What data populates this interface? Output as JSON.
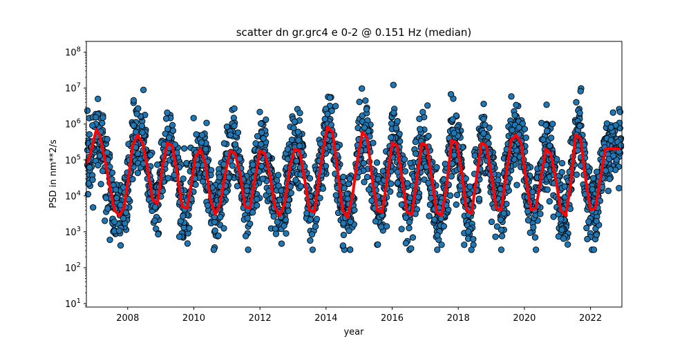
{
  "chart_data": {
    "type": "scatter",
    "title": "scatter dn gr.grc4 e 0-2 @ 0.151 Hz (median)",
    "xlabel": "year",
    "ylabel": "PSD in nm**2/s",
    "xlim": [
      2006.75,
      2022.95
    ],
    "ylim": [
      8,
      200000000
    ],
    "yscale": "log",
    "grid": false,
    "x_ticks": [
      2008,
      2010,
      2012,
      2014,
      2016,
      2018,
      2020,
      2022
    ],
    "x_tick_labels": [
      "2008",
      "2010",
      "2012",
      "2014",
      "2016",
      "2018",
      "2020",
      "2022"
    ],
    "y_ticks": [
      10,
      100,
      1000,
      10000,
      100000,
      1000000,
      10000000,
      100000000
    ],
    "y_tick_labels": [
      {
        "base": "10",
        "exp": "1"
      },
      {
        "base": "10",
        "exp": "2"
      },
      {
        "base": "10",
        "exp": "3"
      },
      {
        "base": "10",
        "exp": "4"
      },
      {
        "base": "10",
        "exp": "5"
      },
      {
        "base": "10",
        "exp": "6"
      },
      {
        "base": "10",
        "exp": "7"
      },
      {
        "base": "10",
        "exp": "8"
      }
    ],
    "scatter_color": "#1f77b4",
    "scatter_edge_color": "#000000",
    "median_color": "#ff0000",
    "median": {
      "x": [
        2006.75,
        2006.85,
        2006.95,
        2007.05,
        2007.15,
        2007.3,
        2007.45,
        2007.6,
        2007.75,
        2007.9,
        2008.05,
        2008.15,
        2008.3,
        2008.45,
        2008.6,
        2008.75,
        2008.9,
        2009.05,
        2009.2,
        2009.35,
        2009.5,
        2009.65,
        2009.8,
        2009.95,
        2010.05,
        2010.2,
        2010.35,
        2010.5,
        2010.65,
        2010.8,
        2010.95,
        2011.1,
        2011.25,
        2011.4,
        2011.55,
        2011.7,
        2011.85,
        2012.0,
        2012.15,
        2012.3,
        2012.45,
        2012.6,
        2012.75,
        2012.9,
        2013.05,
        2013.2,
        2013.35,
        2013.5,
        2013.65,
        2013.8,
        2013.95,
        2014.05,
        2014.2,
        2014.35,
        2014.5,
        2014.65,
        2014.8,
        2014.95,
        2015.1,
        2015.25,
        2015.4,
        2015.55,
        2015.7,
        2015.85,
        2016.0,
        2016.15,
        2016.3,
        2016.45,
        2016.6,
        2016.75,
        2016.9,
        2017.05,
        2017.2,
        2017.35,
        2017.5,
        2017.65,
        2017.8,
        2017.95,
        2018.1,
        2018.25,
        2018.4,
        2018.55,
        2018.7,
        2018.85,
        2019.0,
        2019.15,
        2019.3,
        2019.45,
        2019.6,
        2019.75,
        2019.9,
        2020.05,
        2020.2,
        2020.35,
        2020.5,
        2020.65,
        2020.8,
        2020.95,
        2021.1,
        2021.25,
        2021.4,
        2021.55,
        2021.7,
        2021.85,
        2022.0,
        2022.15,
        2022.3,
        2022.45,
        2022.6,
        2022.75,
        2022.9
      ],
      "y": [
        80000,
        120000,
        300000,
        700000,
        500000,
        120000,
        20000,
        4000,
        2800,
        5000,
        50000,
        250000,
        500000,
        300000,
        60000,
        8000,
        6000,
        60000,
        300000,
        250000,
        40000,
        5000,
        4500,
        30000,
        120000,
        200000,
        80000,
        8000,
        3000,
        6000,
        40000,
        180000,
        150000,
        40000,
        5000,
        4500,
        30000,
        180000,
        150000,
        40000,
        5000,
        2800,
        6000,
        60000,
        200000,
        180000,
        30000,
        4000,
        3500,
        40000,
        300000,
        850000,
        600000,
        50000,
        4000,
        2500,
        10000,
        100000,
        600000,
        400000,
        30000,
        4000,
        3500,
        30000,
        300000,
        250000,
        30000,
        3500,
        3000,
        30000,
        300000,
        250000,
        30000,
        3500,
        2800,
        20000,
        350000,
        300000,
        50000,
        4000,
        3200,
        30000,
        300000,
        250000,
        40000,
        4500,
        4000,
        40000,
        350000,
        500000,
        300000,
        30000,
        4000,
        4500,
        30000,
        200000,
        150000,
        30000,
        4000,
        2800,
        20000,
        500000,
        400000,
        30000,
        4000,
        4500,
        30000,
        200000,
        210000,
        200000,
        200000
      ]
    }
  }
}
